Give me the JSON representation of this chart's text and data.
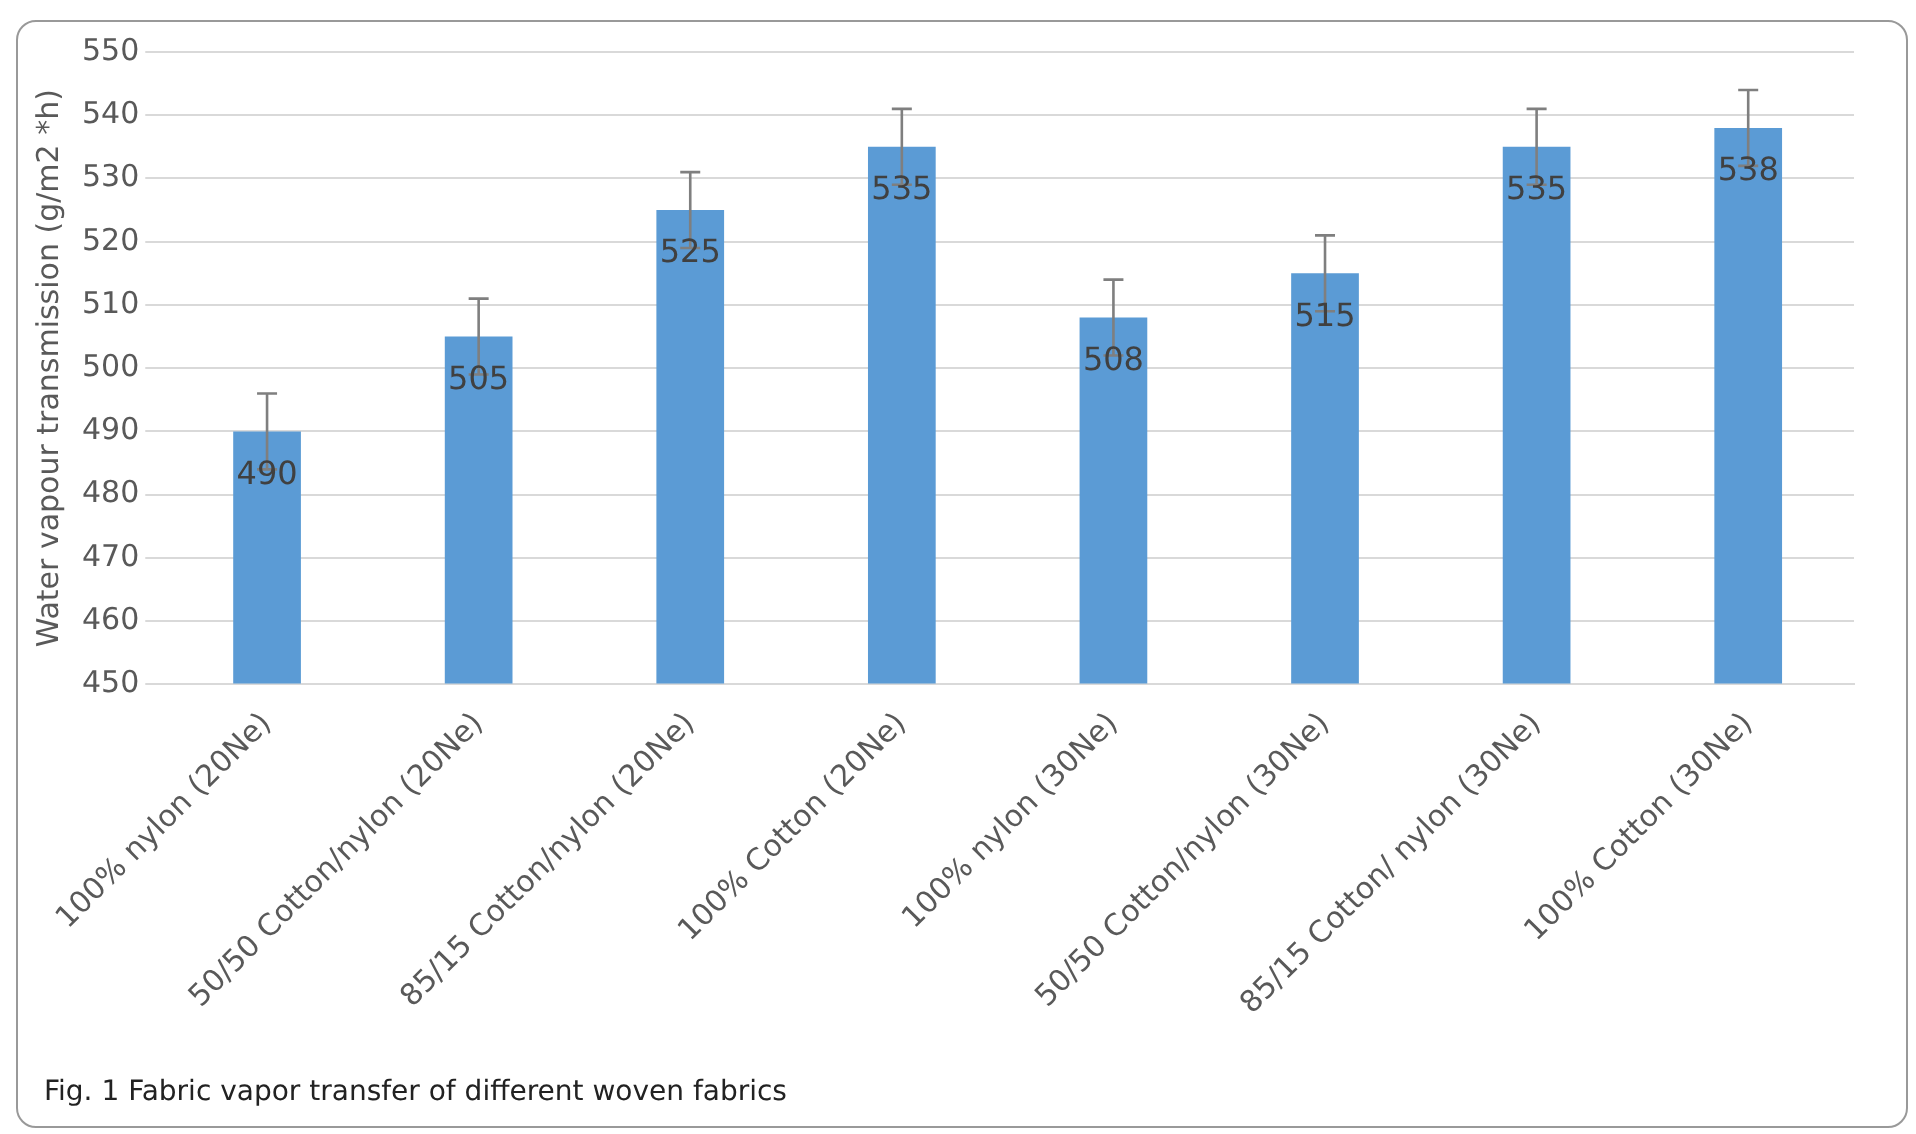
{
  "chart_data": {
    "type": "bar",
    "ylabel": "Water vapour transmission (g/m2 *h)",
    "categories": [
      "100% nylon (20Ne)",
      "50/50 Cotton/nylon (20Ne)",
      "85/15 Cotton/nylon (20Ne)",
      "100% Cotton (20Ne)",
      "100% nylon (30Ne)",
      "50/50 Cotton/nylon (30Ne)",
      "85/15 Cotton/ nylon (30Ne)",
      "100% Cotton (30Ne)"
    ],
    "values": [
      490,
      505,
      525,
      535,
      508,
      515,
      535,
      538
    ],
    "errors": [
      6,
      6,
      6,
      6,
      6,
      6,
      6,
      6
    ],
    "color": "#5b9bd5",
    "ylim": [
      450,
      550
    ],
    "yticks": [
      450,
      460,
      470,
      480,
      490,
      500,
      510,
      520,
      530,
      540,
      550
    ],
    "grid": "y",
    "data_labels": true,
    "annotations": [
      "Fig. 1  Fabric vapor transfer of different woven fabrics"
    ]
  }
}
